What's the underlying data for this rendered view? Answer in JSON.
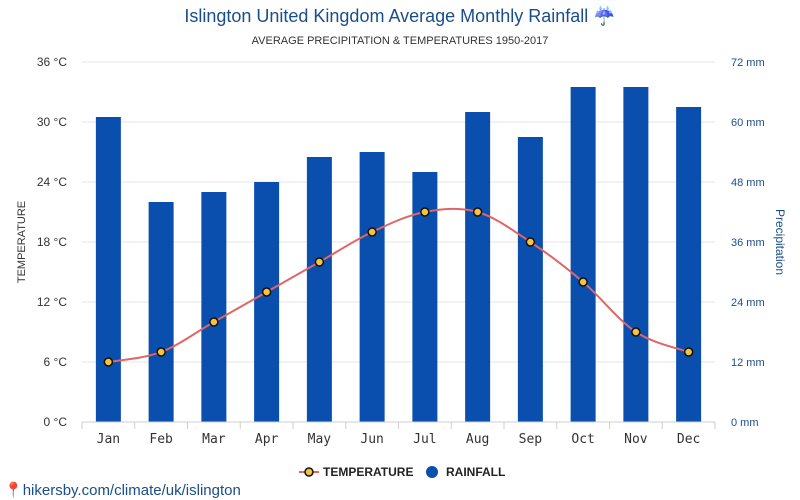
{
  "page": {
    "title": "Islington United Kingdom Average Monthly Rainfall ☔",
    "subtitle": "AVERAGE PRECIPITATION & TEMPERATURES 1950-2017",
    "source_link": "hikersby.com/climate/uk/islington",
    "source_icon": "location-pin-icon"
  },
  "chart_data": {
    "type": "bar",
    "categories": [
      "Jan",
      "Feb",
      "Mar",
      "Apr",
      "May",
      "Jun",
      "Jul",
      "Aug",
      "Sep",
      "Oct",
      "Nov",
      "Dec"
    ],
    "series": [
      {
        "name": "RAINFALL",
        "type": "bar",
        "axis": "right",
        "unit": "mm",
        "color": "#0a4fad",
        "values": [
          61,
          44,
          46,
          48,
          53,
          54,
          50,
          62,
          57,
          67,
          67,
          63
        ]
      },
      {
        "name": "TEMPERATURE",
        "type": "line",
        "axis": "left",
        "unit": "°C",
        "color": "#e06666",
        "marker_fill": "#f5c242",
        "values": [
          6,
          7,
          10,
          13,
          16,
          19,
          21,
          21,
          18,
          14,
          9,
          7
        ]
      }
    ],
    "left_axis": {
      "label": "TEMPERATURE",
      "min": 0,
      "max": 36,
      "step": 6,
      "tick_labels": [
        "0 °C",
        "6 °C",
        "12 °C",
        "18 °C",
        "24 °C",
        "30 °C",
        "36 °C"
      ]
    },
    "right_axis": {
      "label": "Precipitation",
      "min": 0,
      "max": 72,
      "step": 12,
      "tick_labels": [
        "0 mm",
        "12 mm",
        "24 mm",
        "36 mm",
        "48 mm",
        "60 mm",
        "72 mm"
      ]
    },
    "legend": [
      {
        "name": "TEMPERATURE",
        "icon": "line-marker-icon"
      },
      {
        "name": "RAINFALL",
        "icon": "circle-icon"
      }
    ],
    "legend_position": "bottom-center",
    "grid": true
  }
}
